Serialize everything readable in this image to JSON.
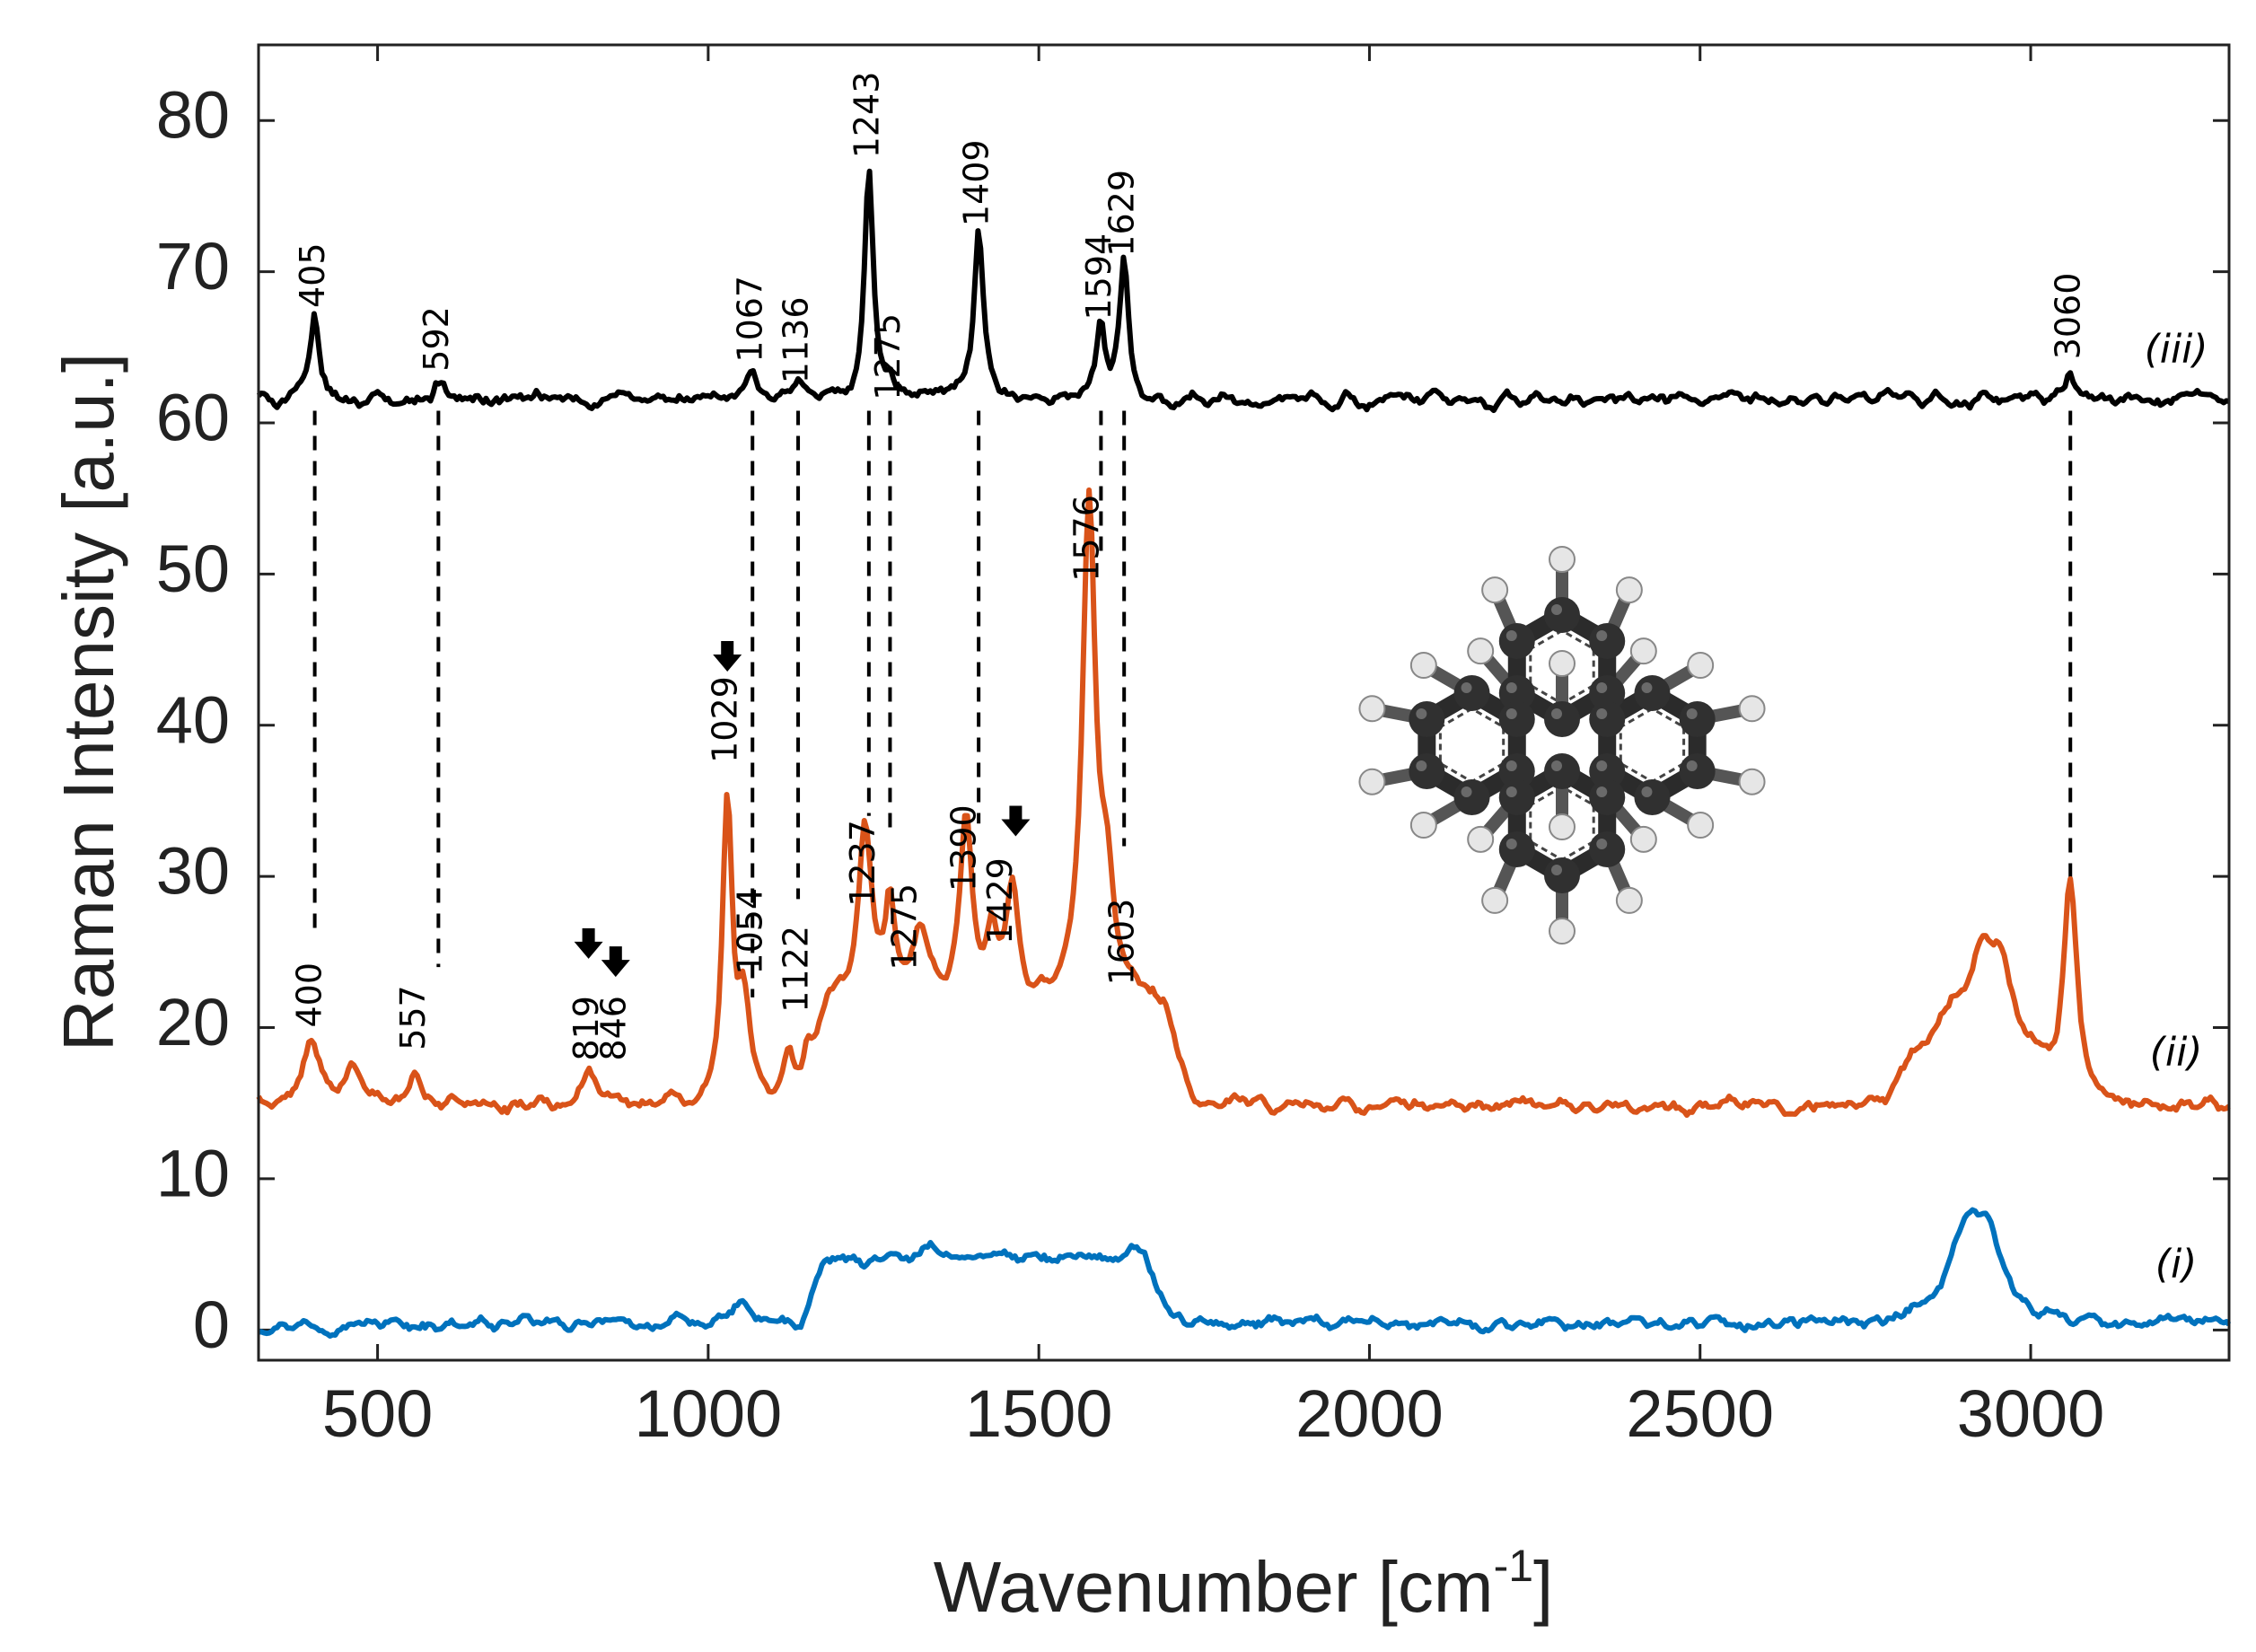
{
  "chart_data": {
    "type": "line",
    "xlabel": "Wavenumber [cm",
    "xlabel_sup": "-1",
    "xlabel_end": "]",
    "ylabel": "Raman Intensity [a.u.]",
    "xlim": [
      320,
      3300
    ],
    "ylim": [
      -2,
      85
    ],
    "x_ticks": [
      500,
      1000,
      1500,
      2000,
      2500,
      3000
    ],
    "x_tick_labels": [
      "500",
      "1000",
      "1500",
      "2000",
      "2500",
      "3000"
    ],
    "y_ticks": [
      0,
      10,
      20,
      30,
      40,
      50,
      60,
      70,
      80
    ],
    "y_tick_labels": [
      "0",
      "10",
      "20",
      "30",
      "40",
      "50",
      "60",
      "70",
      "80"
    ],
    "series": [
      {
        "name": "(i)",
        "color": "#0072bd",
        "baseline": 0.4,
        "noise": 0.45,
        "label_at": [
          3220,
          3.5
        ],
        "plateaus": [
          [
            1180,
            1660,
            4.2
          ]
        ],
        "peaks": [
          [
            1050,
            1.4,
            14
          ],
          [
            1350,
            0.8,
            20
          ],
          [
            1440,
            0.6,
            15
          ],
          [
            1640,
            1.0,
            14
          ],
          [
            2905,
            5.5,
            32
          ],
          [
            2935,
            4.0,
            30
          ]
        ]
      },
      {
        "name": "(ii)",
        "color": "#d95319",
        "baseline": 14.8,
        "noise": 0.5,
        "label_at": [
          3220,
          17.5
        ],
        "plateaus": [
          [
            1180,
            1690,
            6.5
          ],
          [
            2820,
            3000,
            3.0
          ]
        ],
        "peaks": [
          [
            400,
            4.2,
            14
          ],
          [
            460,
            2.5,
            14
          ],
          [
            557,
            2.2,
            10
          ],
          [
            819,
            2.0,
            14
          ],
          [
            846,
            0.8,
            10
          ],
          [
            1029,
            20.5,
            9
          ],
          [
            1054,
            6.0,
            10
          ],
          [
            1122,
            3.5,
            10
          ],
          [
            1150,
            2.2,
            10
          ],
          [
            1237,
            11.5,
            12
          ],
          [
            1275,
            6.5,
            9
          ],
          [
            1320,
            4.5,
            15
          ],
          [
            1390,
            12.5,
            11
          ],
          [
            1429,
            4.0,
            9
          ],
          [
            1460,
            7.5,
            11
          ],
          [
            1576,
            33.0,
            12
          ],
          [
            1603,
            7.0,
            12
          ],
          [
            2880,
            3.0,
            22
          ],
          [
            2925,
            6.0,
            22
          ],
          [
            2955,
            5.0,
            18
          ],
          [
            3060,
            14.5,
            13
          ]
        ]
      },
      {
        "name": "(iii)",
        "color": "#000000",
        "baseline": 61.5,
        "noise": 0.5,
        "label_at": [
          3220,
          64.0
        ],
        "plateaus": [],
        "peaks": [
          [
            405,
            5.5,
            8
          ],
          [
            592,
            1.2,
            10
          ],
          [
            1067,
            2.2,
            8
          ],
          [
            1136,
            1.2,
            8
          ],
          [
            1243,
            15.5,
            8
          ],
          [
            1275,
            1.0,
            6
          ],
          [
            1409,
            11.0,
            8
          ],
          [
            1594,
            5.0,
            7
          ],
          [
            1629,
            9.0,
            8
          ],
          [
            3060,
            2.2,
            8
          ]
        ]
      }
    ],
    "annotations": [
      {
        "text": "405",
        "x": 405,
        "label_y": 67.6,
        "line_top": 60.8,
        "line_bottom": 26.5
      },
      {
        "text": "592",
        "x": 592,
        "label_y": 63.4,
        "line_top": 60.8,
        "line_bottom": 24.0
      },
      {
        "text": "1067",
        "x": 1067,
        "label_y": 64.0,
        "line_top": 60.8,
        "line_bottom": 22.0
      },
      {
        "text": "1136",
        "x": 1136,
        "label_y": 62.6,
        "line_top": 60.8,
        "line_bottom": 28.5
      },
      {
        "text": "1243",
        "x": 1243,
        "label_y": 77.5,
        "line_top": 60.8,
        "line_bottom": 34.0
      },
      {
        "text": "1275",
        "x": 1275,
        "label_y": 61.5,
        "line_top": 60.8,
        "line_bottom": 33.0
      },
      {
        "text": "1409",
        "x": 1409,
        "label_y": 73.0,
        "line_top": 60.8,
        "line_bottom": 33.5
      },
      {
        "text": "1594",
        "x": 1594,
        "label_y": 66.8,
        "line_top": 60.8,
        "line_bottom": 51.0
      },
      {
        "text": "1629",
        "x": 1629,
        "label_y": 71.0,
        "line_top": 60.8,
        "line_bottom": 32.0
      },
      {
        "text": "3060",
        "x": 3060,
        "label_y": 64.2,
        "line_top": 60.8,
        "line_bottom": 29.2
      },
      {
        "text": "400",
        "x": 400,
        "label_y": 20.0
      },
      {
        "text": "557",
        "x": 557,
        "label_y": 18.5
      },
      {
        "text": "819",
        "x": 819,
        "label_y": 17.8
      },
      {
        "text": "846",
        "x": 860,
        "label_y": 17.8
      },
      {
        "text": "1029",
        "x": 1029,
        "label_y": 37.5
      },
      {
        "text": "1054",
        "x": 1067,
        "label_y": 23.5
      },
      {
        "text": "1122",
        "x": 1136,
        "label_y": 21.0
      },
      {
        "text": "1237",
        "x": 1237,
        "label_y": 28.0
      },
      {
        "text": "1275",
        "x": 1300,
        "label_y": 23.8
      },
      {
        "text": "1390",
        "x": 1390,
        "label_y": 29.0
      },
      {
        "text": "1429",
        "x": 1445,
        "label_y": 25.5
      },
      {
        "text": "1576",
        "x": 1576,
        "label_y": 49.5
      },
      {
        "text": "1603",
        "x": 1629,
        "label_y": 22.8
      }
    ],
    "arrows": [
      {
        "x": 1029,
        "y": 44.5
      },
      {
        "x": 819,
        "y": 25.5
      },
      {
        "x": 860,
        "y": 24.3
      },
      {
        "x": 1465,
        "y": 33.6
      }
    ],
    "inset": "pyrene molecule ball-and-stick model",
    "grid": false,
    "legend": "none"
  }
}
